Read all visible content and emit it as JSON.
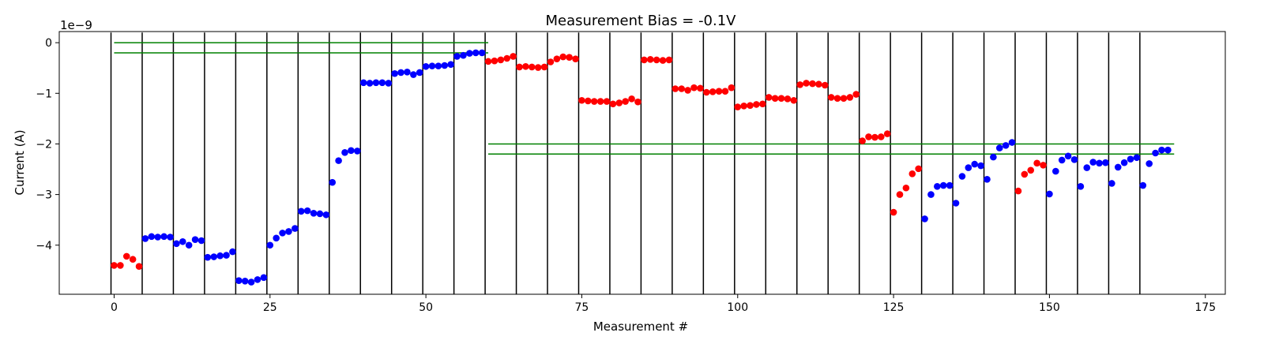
{
  "chart_data": {
    "type": "scatter",
    "title": "Measurement Bias = -0.1V",
    "xlabel": "Measurement #",
    "ylabel": "Current (A)",
    "y_scale_label": "1e−9",
    "xlim": [
      -8.8,
      178.2
    ],
    "ylim": [
      -4.97e-09,
      2.2e-10
    ],
    "x_ticks": [
      0,
      25,
      50,
      75,
      100,
      125,
      150,
      175
    ],
    "x_tick_labels": [
      "0",
      "25",
      "50",
      "75",
      "100",
      "125",
      "150",
      "175"
    ],
    "y_ticks": [
      0,
      -1e-09,
      -2e-09,
      -3e-09,
      -4e-09
    ],
    "y_tick_labels": [
      "0",
      "−1",
      "−2",
      "−3",
      "−4"
    ],
    "grid": false,
    "vertical_separators": [
      -0.5,
      4.5,
      9.5,
      14.5,
      19.5,
      24.5,
      29.5,
      34.5,
      39.5,
      44.5,
      49.5,
      54.5,
      59.5,
      64.5,
      69.5,
      74.5,
      79.5,
      84.5,
      89.5,
      94.5,
      99.5,
      104.5,
      109.5,
      114.5,
      119.5,
      124.5,
      129.5,
      134.5,
      139.5,
      144.5,
      149.5,
      154.5,
      159.5,
      164.5
    ],
    "threshold_lines": [
      {
        "x": [
          0,
          60
        ],
        "y": -0.0,
        "color": "#008000"
      },
      {
        "x": [
          0,
          60
        ],
        "y": -2e-10,
        "color": "#008000"
      },
      {
        "x": [
          60,
          170
        ],
        "y": -2e-09,
        "color": "#008000"
      },
      {
        "x": [
          60,
          170
        ],
        "y": -2.2e-09,
        "color": "#008000"
      }
    ],
    "colors": {
      "red": "#ff0000",
      "blue": "#0000ff",
      "separator": "#000000",
      "threshold": "#008000"
    },
    "series": [
      {
        "color": "#ff0000",
        "points": [
          [
            0,
            -4.4e-09
          ],
          [
            1,
            -4.4e-09
          ],
          [
            2,
            -4.22e-09
          ],
          [
            3,
            -4.28e-09
          ],
          [
            4,
            -4.42e-09
          ],
          [
            60,
            -3.7e-10
          ],
          [
            61,
            -3.6e-10
          ],
          [
            62,
            -3.4e-10
          ],
          [
            63,
            -3.1e-10
          ],
          [
            64,
            -2.7e-10
          ],
          [
            65,
            -4.8e-10
          ],
          [
            66,
            -4.7e-10
          ],
          [
            67,
            -4.8e-10
          ],
          [
            68,
            -4.9e-10
          ],
          [
            69,
            -4.8e-10
          ],
          [
            70,
            -3.8e-10
          ],
          [
            71,
            -3.2e-10
          ],
          [
            72,
            -2.8e-10
          ],
          [
            73,
            -2.9e-10
          ],
          [
            74,
            -3.2e-10
          ],
          [
            75,
            -1.14e-09
          ],
          [
            76,
            -1.15e-09
          ],
          [
            77,
            -1.16e-09
          ],
          [
            78,
            -1.16e-09
          ],
          [
            79,
            -1.16e-09
          ],
          [
            80,
            -1.21e-09
          ],
          [
            81,
            -1.19e-09
          ],
          [
            82,
            -1.16e-09
          ],
          [
            83,
            -1.11e-09
          ],
          [
            84,
            -1.17e-09
          ],
          [
            85,
            -3.4e-10
          ],
          [
            86,
            -3.3e-10
          ],
          [
            87,
            -3.4e-10
          ],
          [
            88,
            -3.5e-10
          ],
          [
            89,
            -3.4e-10
          ],
          [
            90,
            -9.1e-10
          ],
          [
            91,
            -9.1e-10
          ],
          [
            92,
            -9.4e-10
          ],
          [
            93,
            -8.9e-10
          ],
          [
            94,
            -9e-10
          ],
          [
            95,
            -9.8e-10
          ],
          [
            96,
            -9.7e-10
          ],
          [
            97,
            -9.6e-10
          ],
          [
            98,
            -9.6e-10
          ],
          [
            99,
            -8.9e-10
          ],
          [
            100,
            -1.27e-09
          ],
          [
            101,
            -1.25e-09
          ],
          [
            102,
            -1.24e-09
          ],
          [
            103,
            -1.22e-09
          ],
          [
            104,
            -1.21e-09
          ],
          [
            105,
            -1.08e-09
          ],
          [
            106,
            -1.1e-09
          ],
          [
            107,
            -1.1e-09
          ],
          [
            108,
            -1.11e-09
          ],
          [
            109,
            -1.14e-09
          ],
          [
            110,
            -8.3e-10
          ],
          [
            111,
            -8e-10
          ],
          [
            112,
            -8.1e-10
          ],
          [
            113,
            -8.2e-10
          ],
          [
            114,
            -8.4e-10
          ],
          [
            115,
            -1.08e-09
          ],
          [
            116,
            -1.1e-09
          ],
          [
            117,
            -1.1e-09
          ],
          [
            118,
            -1.08e-09
          ],
          [
            119,
            -1.02e-09
          ],
          [
            120,
            -1.94e-09
          ],
          [
            121,
            -1.86e-09
          ],
          [
            122,
            -1.87e-09
          ],
          [
            123,
            -1.86e-09
          ],
          [
            124,
            -1.8e-09
          ],
          [
            125,
            -3.35e-09
          ],
          [
            126,
            -3e-09
          ],
          [
            127,
            -2.87e-09
          ],
          [
            128,
            -2.59e-09
          ],
          [
            129,
            -2.49e-09
          ],
          [
            145,
            -2.93e-09
          ],
          [
            146,
            -2.6e-09
          ],
          [
            147,
            -2.52e-09
          ],
          [
            148,
            -2.38e-09
          ],
          [
            149,
            -2.42e-09
          ]
        ]
      },
      {
        "color": "#0000ff",
        "points": [
          [
            5,
            -3.87e-09
          ],
          [
            6,
            -3.83e-09
          ],
          [
            7,
            -3.84e-09
          ],
          [
            8,
            -3.83e-09
          ],
          [
            9,
            -3.84e-09
          ],
          [
            10,
            -3.97e-09
          ],
          [
            11,
            -3.93e-09
          ],
          [
            12,
            -4e-09
          ],
          [
            13,
            -3.89e-09
          ],
          [
            14,
            -3.91e-09
          ],
          [
            15,
            -4.24e-09
          ],
          [
            16,
            -4.23e-09
          ],
          [
            17,
            -4.21e-09
          ],
          [
            18,
            -4.2e-09
          ],
          [
            19,
            -4.13e-09
          ],
          [
            20,
            -4.7e-09
          ],
          [
            21,
            -4.71e-09
          ],
          [
            22,
            -4.73e-09
          ],
          [
            23,
            -4.68e-09
          ],
          [
            24,
            -4.64e-09
          ],
          [
            25,
            -4e-09
          ],
          [
            26,
            -3.86e-09
          ],
          [
            27,
            -3.76e-09
          ],
          [
            28,
            -3.73e-09
          ],
          [
            29,
            -3.67e-09
          ],
          [
            30,
            -3.33e-09
          ],
          [
            31,
            -3.32e-09
          ],
          [
            32,
            -3.37e-09
          ],
          [
            33,
            -3.38e-09
          ],
          [
            34,
            -3.4e-09
          ],
          [
            35,
            -2.76e-09
          ],
          [
            36,
            -2.33e-09
          ],
          [
            37,
            -2.17e-09
          ],
          [
            38,
            -2.13e-09
          ],
          [
            39,
            -2.14e-09
          ],
          [
            40,
            -7.9e-10
          ],
          [
            41,
            -8e-10
          ],
          [
            42,
            -7.9e-10
          ],
          [
            43,
            -7.9e-10
          ],
          [
            44,
            -8e-10
          ],
          [
            45,
            -6.1e-10
          ],
          [
            46,
            -5.9e-10
          ],
          [
            47,
            -5.8e-10
          ],
          [
            48,
            -6.3e-10
          ],
          [
            49,
            -5.9e-10
          ],
          [
            50,
            -4.7e-10
          ],
          [
            51,
            -4.6e-10
          ],
          [
            52,
            -4.6e-10
          ],
          [
            53,
            -4.5e-10
          ],
          [
            54,
            -4.3e-10
          ],
          [
            55,
            -2.7e-10
          ],
          [
            56,
            -2.5e-10
          ],
          [
            57,
            -2.1e-10
          ],
          [
            58,
            -2e-10
          ],
          [
            59,
            -2e-10
          ],
          [
            130,
            -3.48e-09
          ],
          [
            131,
            -3e-09
          ],
          [
            132,
            -2.84e-09
          ],
          [
            133,
            -2.82e-09
          ],
          [
            134,
            -2.82e-09
          ],
          [
            135,
            -3.17e-09
          ],
          [
            136,
            -2.64e-09
          ],
          [
            137,
            -2.47e-09
          ],
          [
            138,
            -2.4e-09
          ],
          [
            139,
            -2.43e-09
          ],
          [
            140,
            -2.7e-09
          ],
          [
            141,
            -2.26e-09
          ],
          [
            142,
            -2.08e-09
          ],
          [
            143,
            -2.03e-09
          ],
          [
            144,
            -1.97e-09
          ],
          [
            150,
            -2.99e-09
          ],
          [
            151,
            -2.54e-09
          ],
          [
            152,
            -2.32e-09
          ],
          [
            153,
            -2.24e-09
          ],
          [
            154,
            -2.31e-09
          ],
          [
            155,
            -2.84e-09
          ],
          [
            156,
            -2.47e-09
          ],
          [
            157,
            -2.36e-09
          ],
          [
            158,
            -2.38e-09
          ],
          [
            159,
            -2.37e-09
          ],
          [
            160,
            -2.78e-09
          ],
          [
            161,
            -2.46e-09
          ],
          [
            162,
            -2.37e-09
          ],
          [
            163,
            -2.3e-09
          ],
          [
            164,
            -2.27e-09
          ],
          [
            165,
            -2.82e-09
          ],
          [
            166,
            -2.39e-09
          ],
          [
            167,
            -2.18e-09
          ],
          [
            168,
            -2.12e-09
          ],
          [
            169,
            -2.12e-09
          ]
        ]
      }
    ]
  }
}
